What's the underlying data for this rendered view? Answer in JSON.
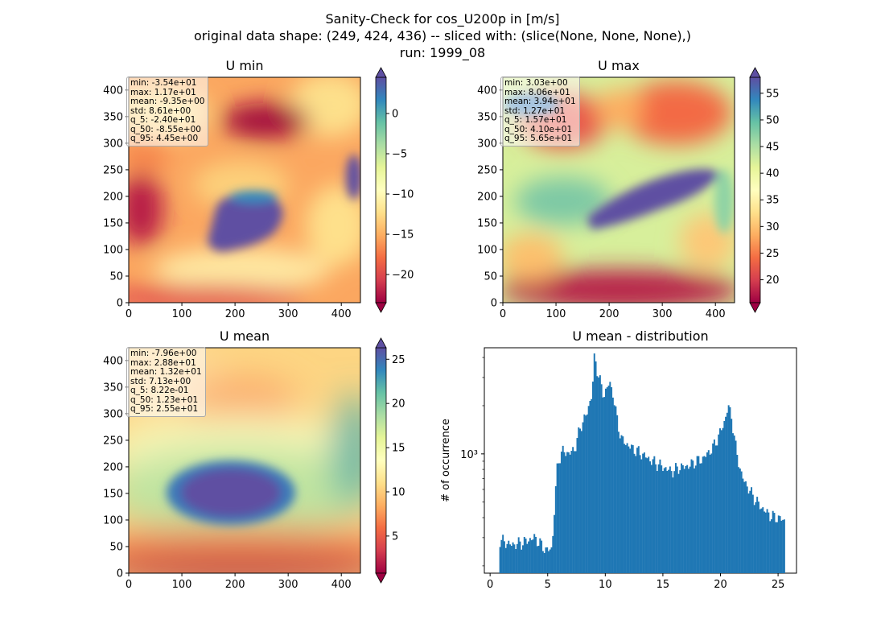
{
  "header": {
    "line1": "Sanity-Check for cos_U200p in [m/s]",
    "line2": "original data shape: (249, 424, 436) -- sliced with: (slice(None, None, None),)",
    "line3": "run: 1999_08"
  },
  "chart_data": [
    {
      "type": "heatmap",
      "title": "U min",
      "xlim": [
        0,
        436
      ],
      "ylim": [
        0,
        424
      ],
      "xticks": [
        "0",
        "100",
        "200",
        "300",
        "400"
      ],
      "yticks": [
        "0",
        "50",
        "100",
        "150",
        "200",
        "250",
        "300",
        "350",
        "400"
      ],
      "colormap": "Spectral",
      "colorbar": {
        "range": [
          -23.5,
          4.5
        ],
        "ticks": [
          "0",
          "−5",
          "−10",
          "−15",
          "−20"
        ],
        "tick_values": [
          0,
          -5,
          -10,
          -15,
          -20
        ]
      },
      "stats": [
        "min: -3.54e+01",
        "max: 1.17e+01",
        "mean: -9.35e+00",
        "std: 8.61e+00",
        "q_5: -2.40e+01",
        "q_50: -8.55e+00",
        "q_95: 4.45e+00"
      ]
    },
    {
      "type": "heatmap",
      "title": "U max",
      "xlim": [
        0,
        436
      ],
      "ylim": [
        0,
        424
      ],
      "xticks": [
        "0",
        "100",
        "200",
        "300",
        "400"
      ],
      "yticks": [
        "0",
        "50",
        "100",
        "150",
        "200",
        "250",
        "300",
        "350",
        "400"
      ],
      "colormap": "Spectral",
      "colorbar": {
        "range": [
          15.7,
          58
        ],
        "ticks": [
          "55",
          "50",
          "45",
          "40",
          "35",
          "30",
          "25",
          "20"
        ],
        "tick_values": [
          55,
          50,
          45,
          40,
          35,
          30,
          25,
          20
        ]
      },
      "stats": [
        "min: 3.03e+00",
        "max: 8.06e+01",
        "mean: 3.94e+01",
        "std: 1.27e+01",
        "q_5: 1.57e+01",
        "q_50: 4.10e+01",
        "q_95: 5.65e+01"
      ]
    },
    {
      "type": "heatmap",
      "title": "U mean",
      "xlim": [
        0,
        436
      ],
      "ylim": [
        0,
        424
      ],
      "xticks": [
        "0",
        "100",
        "200",
        "300",
        "400"
      ],
      "yticks": [
        "0",
        "50",
        "100",
        "150",
        "200",
        "250",
        "300",
        "350",
        "400"
      ],
      "colormap": "Spectral",
      "colorbar": {
        "range": [
          0.8,
          26.3
        ],
        "ticks": [
          "25",
          "20",
          "15",
          "10",
          "5"
        ],
        "tick_values": [
          25,
          20,
          15,
          10,
          5
        ]
      },
      "stats": [
        "min: -7.96e+00",
        "max: 2.88e+01",
        "mean: 1.32e+01",
        "std: 7.13e+00",
        "q_5: 8.22e-01",
        "q_50: 1.23e+01",
        "q_95: 2.55e+01"
      ]
    },
    {
      "type": "bar",
      "title": "U mean - distribution",
      "ylabel": "# of occurrence",
      "yscale": "log",
      "xlim": [
        -0.5,
        26.6
      ],
      "ylim": [
        180,
        4600
      ],
      "xticks": [
        "0",
        "5",
        "10",
        "15",
        "20",
        "25"
      ],
      "ytick_label": "10³",
      "color": "#1f77b4",
      "x": [
        0.8,
        1.8,
        2.8,
        3.8,
        4.8,
        5.3,
        5.8,
        6.3,
        6.8,
        7.3,
        7.8,
        8.3,
        8.8,
        9.0,
        9.3,
        9.8,
        10.3,
        10.6,
        10.8,
        11.3,
        11.8,
        12.3,
        12.8,
        13.3,
        13.8,
        14.3,
        14.8,
        15.3,
        15.8,
        16.3,
        16.8,
        17.3,
        17.8,
        18.3,
        18.8,
        19.3,
        19.8,
        20.3,
        20.6,
        20.9,
        21.3,
        21.8,
        22.3,
        22.8,
        23.3,
        23.8,
        24.3,
        24.8,
        25.3,
        25.5
      ],
      "values": [
        290,
        270,
        280,
        300,
        250,
        255,
        900,
        1050,
        1000,
        1080,
        1500,
        1750,
        2400,
        4100,
        3200,
        2300,
        2800,
        2400,
        1900,
        1250,
        1150,
        1080,
        1030,
        980,
        920,
        880,
        840,
        800,
        780,
        820,
        830,
        850,
        900,
        920,
        1000,
        1100,
        1300,
        1600,
        2000,
        1700,
        1050,
        720,
        620,
        540,
        480,
        440,
        410,
        400,
        390,
        380
      ]
    }
  ]
}
